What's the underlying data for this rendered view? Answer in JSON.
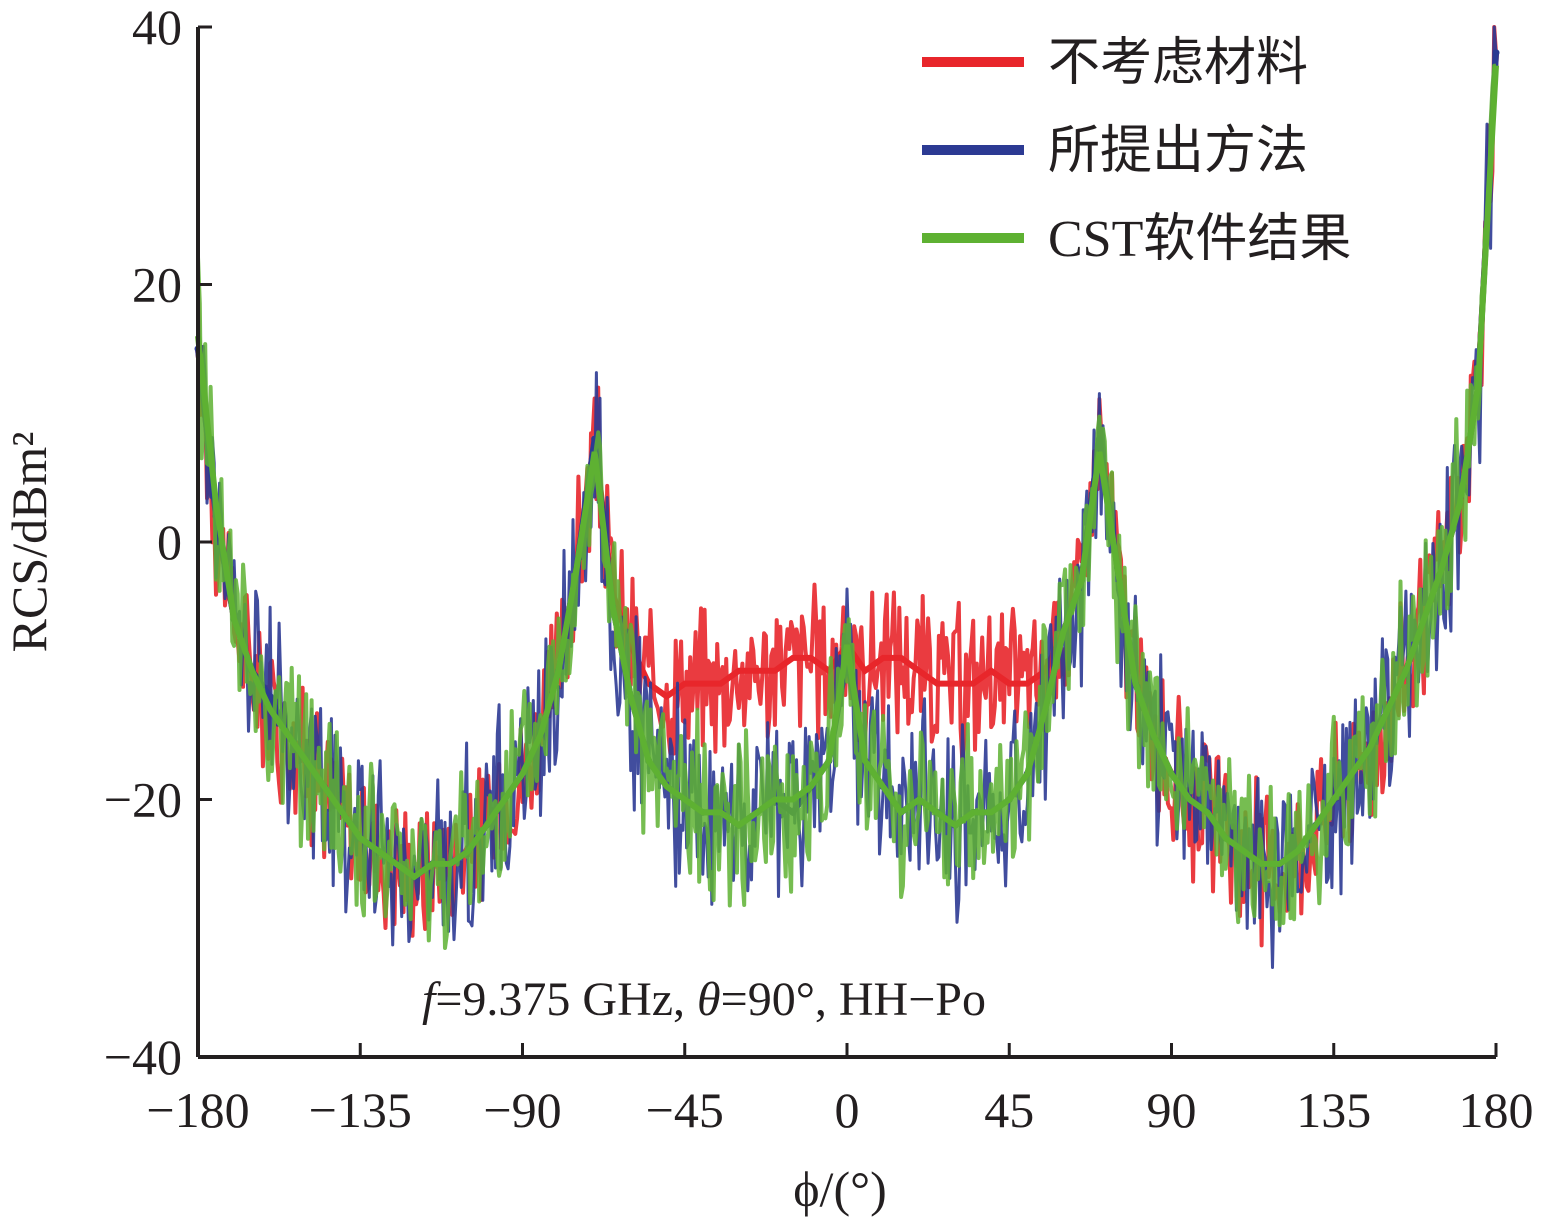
{
  "chart_data": {
    "type": "line",
    "xlabel": "ϕ/(°)",
    "ylabel": "RCS/dBm²",
    "xlim": [
      -180,
      180
    ],
    "ylim": [
      -40,
      40
    ],
    "xticks": [
      -180,
      -135,
      -90,
      -45,
      0,
      45,
      90,
      135,
      180
    ],
    "yticks": [
      -40,
      -20,
      0,
      20,
      40
    ],
    "x_tick_labels": [
      "−180",
      "−135",
      "−90",
      "−45",
      "0",
      "45",
      "90",
      "135",
      "180"
    ],
    "y_tick_labels": [
      "−40",
      "−20",
      "0",
      "20",
      "40"
    ],
    "annotation": {
      "f_symbol": "f",
      "f_value": "=9.375 GHz, ",
      "theta_symbol": "θ",
      "theta_value": "=90°, HH−Po"
    },
    "legend_position": "top-right",
    "grid": false,
    "x": [
      -180,
      -175,
      -170,
      -165,
      -160,
      -155,
      -150,
      -145,
      -140,
      -135,
      -130,
      -125,
      -120,
      -115,
      -110,
      -105,
      -100,
      -95,
      -90,
      -85,
      -80,
      -75,
      -70,
      -65,
      -60,
      -55,
      -50,
      -45,
      -40,
      -35,
      -30,
      -25,
      -20,
      -15,
      -10,
      -5,
      0,
      5,
      10,
      15,
      20,
      25,
      30,
      35,
      40,
      45,
      50,
      55,
      60,
      65,
      70,
      75,
      80,
      85,
      90,
      95,
      100,
      105,
      110,
      115,
      120,
      125,
      130,
      135,
      140,
      145,
      150,
      155,
      160,
      165,
      170,
      175,
      180
    ],
    "series": [
      {
        "name": "不考虑材料",
        "color": "#e8262b",
        "values": [
          15,
          2,
          -6,
          -10,
          -12,
          -15,
          -17,
          -19,
          -21,
          -23,
          -24,
          -25,
          -26,
          -25,
          -25,
          -24,
          -22,
          -20,
          -18,
          -15,
          -10,
          -2,
          8,
          -4,
          -8,
          -11,
          -12,
          -11,
          -11,
          -11,
          -10,
          -10,
          -10,
          -9,
          -9,
          -10,
          -8,
          -10,
          -9,
          -9,
          -10,
          -11,
          -11,
          -11,
          -10,
          -11,
          -11,
          -10,
          -7,
          -3,
          8,
          -2,
          -11,
          -15,
          -18,
          -20,
          -21,
          -23,
          -24,
          -25,
          -25,
          -24,
          -22,
          -20,
          -18,
          -16,
          -13,
          -10,
          -6,
          -2,
          3,
          12,
          38
        ]
      },
      {
        "name": "所提出方法",
        "color": "#2c3a93",
        "values": [
          15,
          2,
          -6,
          -10,
          -12,
          -15,
          -17,
          -19,
          -21,
          -23,
          -24,
          -25,
          -26,
          -25,
          -25,
          -24,
          -22,
          -20,
          -18,
          -15,
          -10,
          -2,
          8,
          -5,
          -12,
          -17,
          -19,
          -20,
          -21,
          -21,
          -22,
          -21,
          -20,
          -21,
          -19,
          -17,
          -9,
          -17,
          -19,
          -21,
          -20,
          -21,
          -22,
          -21,
          -21,
          -20,
          -18,
          -13,
          -7,
          -3,
          8,
          -2,
          -11,
          -15,
          -18,
          -20,
          -21,
          -23,
          -24,
          -25,
          -25,
          -24,
          -22,
          -20,
          -18,
          -16,
          -13,
          -10,
          -6,
          -2,
          3,
          12,
          38
        ]
      },
      {
        "name": "CST软件结果",
        "color": "#5eb132",
        "values": [
          16,
          3,
          -6,
          -10,
          -13,
          -15,
          -17,
          -19,
          -21,
          -23,
          -24,
          -25,
          -26,
          -25,
          -25,
          -24,
          -22,
          -20,
          -18,
          -15,
          -10,
          -2,
          7,
          -5,
          -12,
          -17,
          -19,
          -20,
          -21,
          -21,
          -22,
          -21,
          -20,
          -20,
          -19,
          -17,
          -8,
          -17,
          -19,
          -21,
          -20,
          -21,
          -22,
          -21,
          -21,
          -20,
          -18,
          -13,
          -7,
          -3,
          7,
          -2,
          -11,
          -15,
          -18,
          -20,
          -21,
          -23,
          -24,
          -25,
          -25,
          -24,
          -22,
          -20,
          -18,
          -16,
          -13,
          -10,
          -6,
          -2,
          3,
          12,
          37
        ]
      }
    ]
  }
}
